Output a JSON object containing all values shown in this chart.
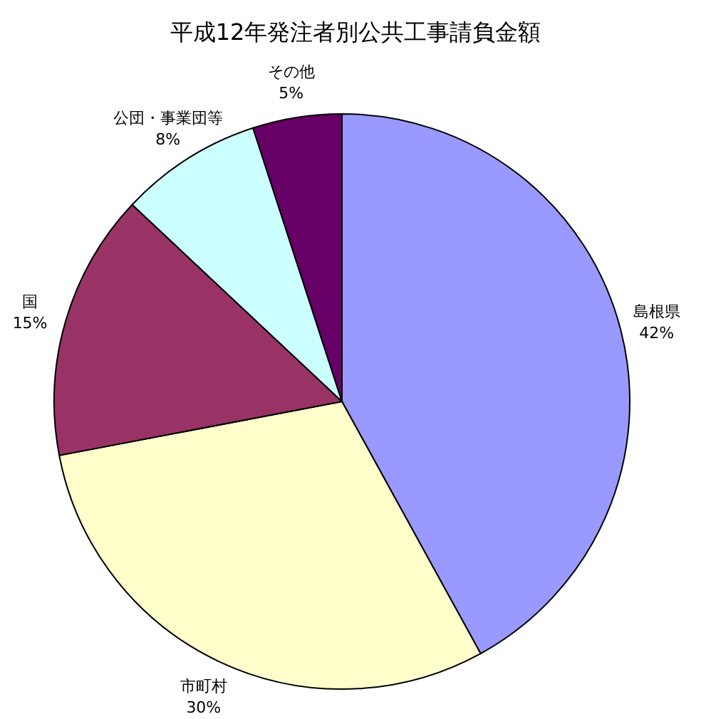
{
  "chart_data": {
    "type": "pie",
    "title": "平成12年発注者別公共工事請負金額",
    "categories": [
      "島根県",
      "市町村",
      "国",
      "公団・事業団等",
      "その他"
    ],
    "values": [
      42,
      30,
      15,
      8,
      5
    ],
    "colors": [
      "#9999ff",
      "#ffffcc",
      "#993366",
      "#ccffff",
      "#660066"
    ],
    "value_labels": [
      "42%",
      "30%",
      "15%",
      "8%",
      "5%"
    ]
  }
}
